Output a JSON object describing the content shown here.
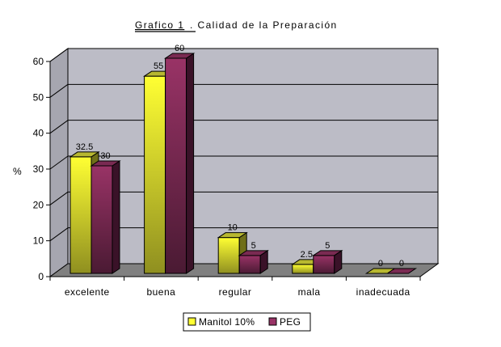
{
  "chart_data": {
    "type": "bar",
    "title_prefix": "Grafico 1",
    "title_rest": ". Calidad de la Preparación",
    "ylabel": "%",
    "xlabel": "",
    "ylim": [
      0,
      60
    ],
    "yticks": [
      "0",
      "10",
      "20",
      "30",
      "40",
      "50",
      "60"
    ],
    "categories": [
      "excelente",
      "buena",
      "regular",
      "mala",
      "inadecuada"
    ],
    "series": [
      {
        "name": "Manitol 10%",
        "values": [
          32.5,
          55,
          10,
          2.5,
          0
        ],
        "labels": [
          "32.5",
          "55",
          "10",
          "2.5",
          "0"
        ]
      },
      {
        "name": "PEG",
        "values": [
          30,
          60,
          5,
          5,
          0
        ],
        "labels": [
          "30",
          "60",
          "5",
          "5",
          "0"
        ]
      }
    ],
    "legend_position": "bottom",
    "grid": true,
    "colors": {
      "wall": "#bcbcc6",
      "floor": "#808080",
      "manitol": "#ffff33",
      "manitol_dark": "#8f8f20",
      "peg": "#993366",
      "peg_dark": "#4a1a33"
    }
  }
}
